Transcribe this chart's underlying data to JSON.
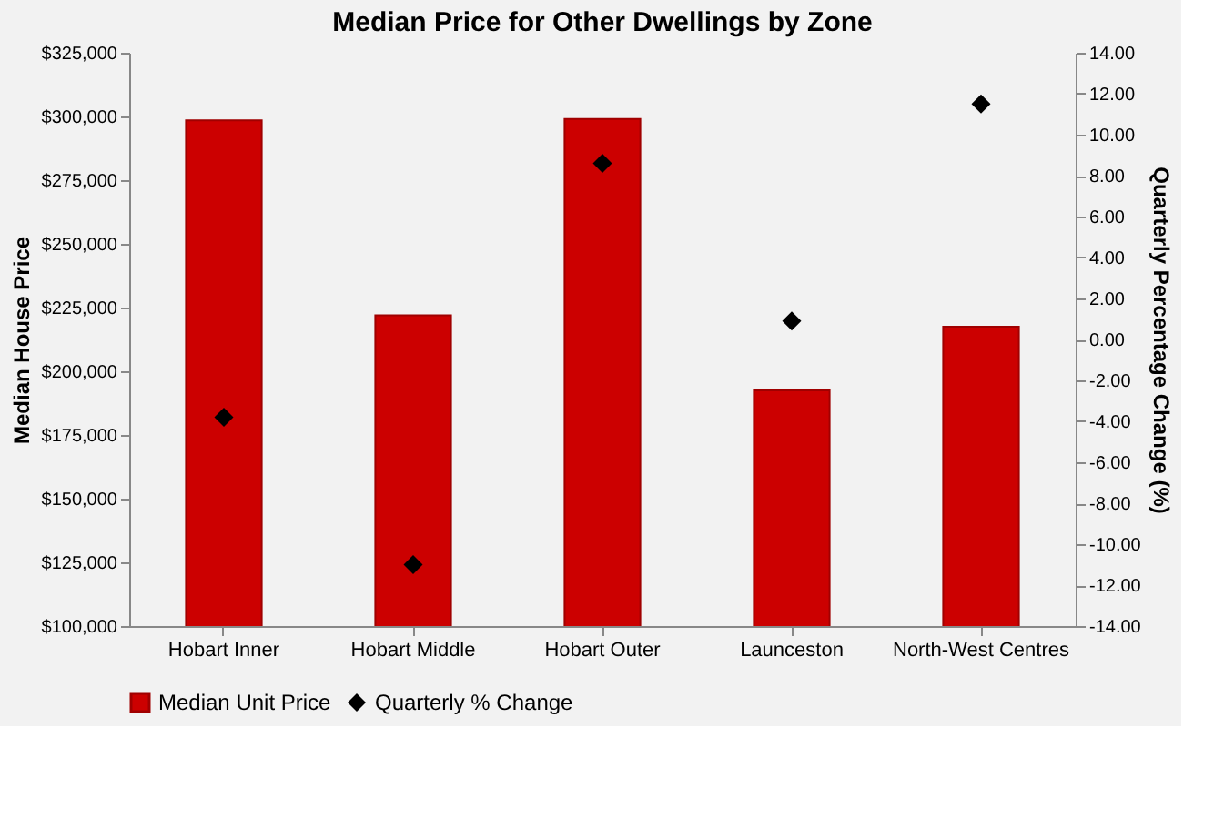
{
  "chart_data": {
    "type": "bar",
    "title": "Median Price for Other Dwellings by Zone",
    "ylabel": "Median House Price",
    "y2label": "Quarterly Percentage Change (%)",
    "categories": [
      "Hobart Inner",
      "Hobart Middle",
      "Hobart Outer",
      "Launceston",
      "North-West Centres"
    ],
    "series": [
      {
        "name": "Median Unit Price",
        "color": "#cc0000",
        "values": [
          298500,
          222000,
          299000,
          192500,
          217500
        ]
      },
      {
        "name": "Quarterly % Change",
        "type": "scatter",
        "axis": "y2",
        "marker": "diamond",
        "color": "#000000",
        "values": [
          -3.8,
          -11.0,
          8.6,
          0.9,
          11.5
        ]
      }
    ],
    "ylim": [
      100000,
      325000
    ],
    "yticks": [
      {
        "value": 100000,
        "label": "$100,000"
      },
      {
        "value": 125000,
        "label": "$125,000"
      },
      {
        "value": 150000,
        "label": "$150,000"
      },
      {
        "value": 175000,
        "label": "$175,000"
      },
      {
        "value": 200000,
        "label": "$200,000"
      },
      {
        "value": 225000,
        "label": "$225,000"
      },
      {
        "value": 250000,
        "label": "$250,000"
      },
      {
        "value": 275000,
        "label": "$275,000"
      },
      {
        "value": 300000,
        "label": "$300,000"
      },
      {
        "value": 325000,
        "label": "$325,000"
      }
    ],
    "y2lim": [
      -14,
      14
    ],
    "y2ticks": [
      {
        "value": -14,
        "label": "-14.00"
      },
      {
        "value": -12,
        "label": "-12.00"
      },
      {
        "value": -10,
        "label": "-10.00"
      },
      {
        "value": -8,
        "label": "-8.00"
      },
      {
        "value": -6,
        "label": "-6.00"
      },
      {
        "value": -4,
        "label": "-4.00"
      },
      {
        "value": -2,
        "label": "-2.00"
      },
      {
        "value": 0,
        "label": "0.00"
      },
      {
        "value": 2,
        "label": "2.00"
      },
      {
        "value": 4,
        "label": "4.00"
      },
      {
        "value": 6,
        "label": "6.00"
      },
      {
        "value": 8,
        "label": "8.00"
      },
      {
        "value": 10,
        "label": "10.00"
      },
      {
        "value": 12,
        "label": "12.00"
      },
      {
        "value": 14,
        "label": "14.00"
      }
    ],
    "grid": false,
    "legend": "bottom"
  }
}
